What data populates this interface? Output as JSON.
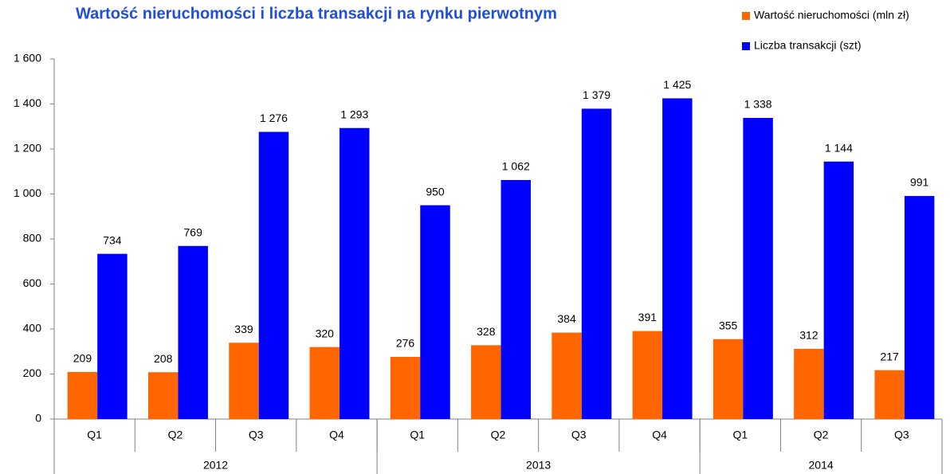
{
  "chart_data": {
    "type": "bar",
    "title": "Wartość nieruchomości i liczba transakcji na rynku pierwotnym",
    "groups": [
      {
        "name": "2012",
        "categories": [
          "Q1",
          "Q2",
          "Q3",
          "Q4"
        ]
      },
      {
        "name": "2013",
        "categories": [
          "Q1",
          "Q2",
          "Q3",
          "Q4"
        ]
      },
      {
        "name": "2014",
        "categories": [
          "Q1",
          "Q2",
          "Q3"
        ]
      }
    ],
    "series": [
      {
        "name": "Wartość nieruchomości (mln zł)",
        "color": "#ff6600",
        "values": [
          209,
          208,
          339,
          320,
          276,
          328,
          384,
          391,
          355,
          312,
          217
        ],
        "value_labels": [
          "209",
          "208",
          "339",
          "320",
          "276",
          "328",
          "384",
          "391",
          "355",
          "312",
          "217"
        ]
      },
      {
        "name": "Liczba transakcji (szt)",
        "color": "#0000ff",
        "values": [
          734,
          769,
          1276,
          1293,
          950,
          1062,
          1379,
          1425,
          1338,
          1144,
          991
        ],
        "value_labels": [
          "734",
          "769",
          "1 276",
          "1 293",
          "950",
          "1 062",
          "1 379",
          "1 425",
          "1 338",
          "1 144",
          "991"
        ]
      }
    ],
    "ylim": [
      0,
      1600
    ],
    "yticks": [
      0,
      200,
      400,
      600,
      800,
      {
        "value": 1000,
        "label": "1 000"
      },
      {
        "value": 1200,
        "label": "1 200"
      },
      {
        "value": 1400,
        "label": "1 400"
      },
      {
        "value": 1600,
        "label": "1 600"
      }
    ],
    "legend": "top-right",
    "grid": false
  }
}
